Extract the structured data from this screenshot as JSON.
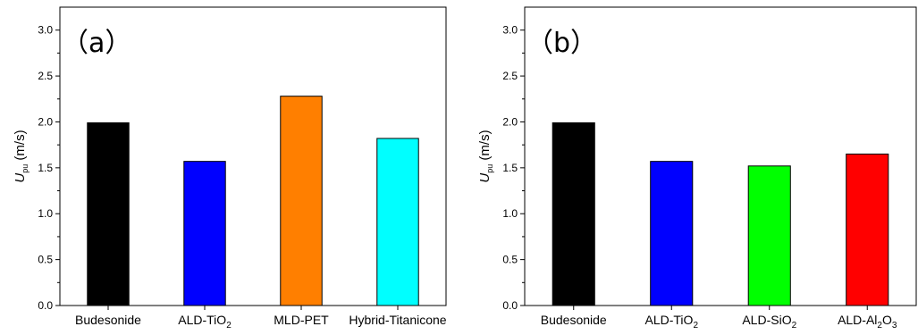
{
  "chart_data": [
    {
      "type": "bar",
      "panel_label": "（a）",
      "ylabel_main": "U",
      "ylabel_sub": "pu",
      "ylabel_unit": " (m/s)",
      "ylim": [
        0,
        3.25
      ],
      "yticks": [
        "0.0",
        "0.5",
        "1.0",
        "1.5",
        "2.0",
        "2.5",
        "3.0"
      ],
      "categories": [
        {
          "main": "Budesonide",
          "sub": "",
          "rest": ""
        },
        {
          "main": "ALD-TiO",
          "sub": "2",
          "rest": ""
        },
        {
          "main": "MLD-PET",
          "sub": "",
          "rest": ""
        },
        {
          "main": "Hybrid-Titanicone",
          "sub": "",
          "rest": ""
        }
      ],
      "values": [
        1.99,
        1.57,
        2.28,
        1.82
      ],
      "colors": [
        "#000000",
        "#0000ff",
        "#ff7f00",
        "#00ffff"
      ],
      "grid": false,
      "legend": "none"
    },
    {
      "type": "bar",
      "panel_label": "（b）",
      "ylabel_main": "U",
      "ylabel_sub": "pu",
      "ylabel_unit": " (m/s)",
      "ylim": [
        0,
        3.25
      ],
      "yticks": [
        "0.0",
        "0.5",
        "1.0",
        "1.5",
        "2.0",
        "2.5",
        "3.0"
      ],
      "categories": [
        {
          "main": "Budesonide",
          "sub": "",
          "rest": ""
        },
        {
          "main": "ALD-TiO",
          "sub": "2",
          "rest": ""
        },
        {
          "main": "ALD-SiO",
          "sub": "2",
          "rest": ""
        },
        {
          "main": "ALD-Al",
          "sub": "2",
          "rest": "O",
          "sub2": "3"
        }
      ],
      "values": [
        1.99,
        1.57,
        1.52,
        1.65
      ],
      "colors": [
        "#000000",
        "#0000ff",
        "#00ff00",
        "#ff0000"
      ],
      "grid": false,
      "legend": "none"
    }
  ]
}
